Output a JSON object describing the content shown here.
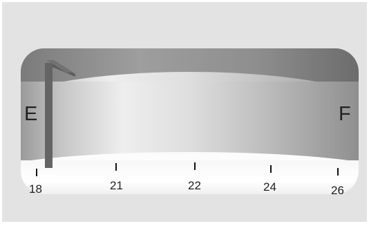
{
  "gauge": {
    "left_label": "E",
    "right_label": "F",
    "scale": {
      "ticks": [
        {
          "label": "18"
        },
        {
          "label": "21"
        },
        {
          "label": "22"
        },
        {
          "label": "24"
        },
        {
          "label": "26"
        }
      ]
    }
  }
}
